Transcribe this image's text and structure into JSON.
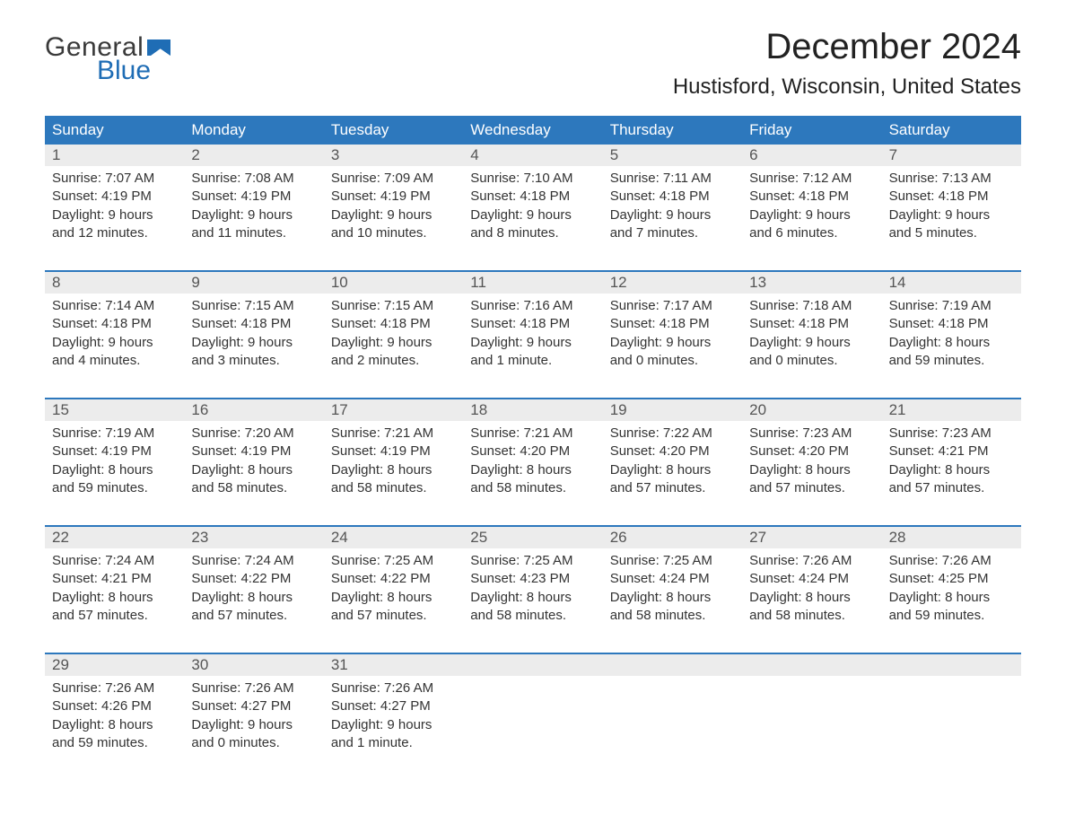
{
  "logo": {
    "general": "General",
    "blue": "Blue",
    "flag_color": "#1f6db5"
  },
  "header": {
    "month_title": "December 2024",
    "location": "Hustisford, Wisconsin, United States"
  },
  "styling": {
    "header_bg": "#2d78bd",
    "header_text": "#ffffff",
    "daynum_bg": "#ececec",
    "week_border": "#2d78bd",
    "body_text": "#333333",
    "title_fontsize": 40,
    "location_fontsize": 24,
    "weekday_fontsize": 17,
    "cell_fontsize": 15
  },
  "weekdays": [
    "Sunday",
    "Monday",
    "Tuesday",
    "Wednesday",
    "Thursday",
    "Friday",
    "Saturday"
  ],
  "weeks": [
    [
      {
        "day": "1",
        "sunrise": "Sunrise: 7:07 AM",
        "sunset": "Sunset: 4:19 PM",
        "dl1": "Daylight: 9 hours",
        "dl2": "and 12 minutes."
      },
      {
        "day": "2",
        "sunrise": "Sunrise: 7:08 AM",
        "sunset": "Sunset: 4:19 PM",
        "dl1": "Daylight: 9 hours",
        "dl2": "and 11 minutes."
      },
      {
        "day": "3",
        "sunrise": "Sunrise: 7:09 AM",
        "sunset": "Sunset: 4:19 PM",
        "dl1": "Daylight: 9 hours",
        "dl2": "and 10 minutes."
      },
      {
        "day": "4",
        "sunrise": "Sunrise: 7:10 AM",
        "sunset": "Sunset: 4:18 PM",
        "dl1": "Daylight: 9 hours",
        "dl2": "and 8 minutes."
      },
      {
        "day": "5",
        "sunrise": "Sunrise: 7:11 AM",
        "sunset": "Sunset: 4:18 PM",
        "dl1": "Daylight: 9 hours",
        "dl2": "and 7 minutes."
      },
      {
        "day": "6",
        "sunrise": "Sunrise: 7:12 AM",
        "sunset": "Sunset: 4:18 PM",
        "dl1": "Daylight: 9 hours",
        "dl2": "and 6 minutes."
      },
      {
        "day": "7",
        "sunrise": "Sunrise: 7:13 AM",
        "sunset": "Sunset: 4:18 PM",
        "dl1": "Daylight: 9 hours",
        "dl2": "and 5 minutes."
      }
    ],
    [
      {
        "day": "8",
        "sunrise": "Sunrise: 7:14 AM",
        "sunset": "Sunset: 4:18 PM",
        "dl1": "Daylight: 9 hours",
        "dl2": "and 4 minutes."
      },
      {
        "day": "9",
        "sunrise": "Sunrise: 7:15 AM",
        "sunset": "Sunset: 4:18 PM",
        "dl1": "Daylight: 9 hours",
        "dl2": "and 3 minutes."
      },
      {
        "day": "10",
        "sunrise": "Sunrise: 7:15 AM",
        "sunset": "Sunset: 4:18 PM",
        "dl1": "Daylight: 9 hours",
        "dl2": "and 2 minutes."
      },
      {
        "day": "11",
        "sunrise": "Sunrise: 7:16 AM",
        "sunset": "Sunset: 4:18 PM",
        "dl1": "Daylight: 9 hours",
        "dl2": "and 1 minute."
      },
      {
        "day": "12",
        "sunrise": "Sunrise: 7:17 AM",
        "sunset": "Sunset: 4:18 PM",
        "dl1": "Daylight: 9 hours",
        "dl2": "and 0 minutes."
      },
      {
        "day": "13",
        "sunrise": "Sunrise: 7:18 AM",
        "sunset": "Sunset: 4:18 PM",
        "dl1": "Daylight: 9 hours",
        "dl2": "and 0 minutes."
      },
      {
        "day": "14",
        "sunrise": "Sunrise: 7:19 AM",
        "sunset": "Sunset: 4:18 PM",
        "dl1": "Daylight: 8 hours",
        "dl2": "and 59 minutes."
      }
    ],
    [
      {
        "day": "15",
        "sunrise": "Sunrise: 7:19 AM",
        "sunset": "Sunset: 4:19 PM",
        "dl1": "Daylight: 8 hours",
        "dl2": "and 59 minutes."
      },
      {
        "day": "16",
        "sunrise": "Sunrise: 7:20 AM",
        "sunset": "Sunset: 4:19 PM",
        "dl1": "Daylight: 8 hours",
        "dl2": "and 58 minutes."
      },
      {
        "day": "17",
        "sunrise": "Sunrise: 7:21 AM",
        "sunset": "Sunset: 4:19 PM",
        "dl1": "Daylight: 8 hours",
        "dl2": "and 58 minutes."
      },
      {
        "day": "18",
        "sunrise": "Sunrise: 7:21 AM",
        "sunset": "Sunset: 4:20 PM",
        "dl1": "Daylight: 8 hours",
        "dl2": "and 58 minutes."
      },
      {
        "day": "19",
        "sunrise": "Sunrise: 7:22 AM",
        "sunset": "Sunset: 4:20 PM",
        "dl1": "Daylight: 8 hours",
        "dl2": "and 57 minutes."
      },
      {
        "day": "20",
        "sunrise": "Sunrise: 7:23 AM",
        "sunset": "Sunset: 4:20 PM",
        "dl1": "Daylight: 8 hours",
        "dl2": "and 57 minutes."
      },
      {
        "day": "21",
        "sunrise": "Sunrise: 7:23 AM",
        "sunset": "Sunset: 4:21 PM",
        "dl1": "Daylight: 8 hours",
        "dl2": "and 57 minutes."
      }
    ],
    [
      {
        "day": "22",
        "sunrise": "Sunrise: 7:24 AM",
        "sunset": "Sunset: 4:21 PM",
        "dl1": "Daylight: 8 hours",
        "dl2": "and 57 minutes."
      },
      {
        "day": "23",
        "sunrise": "Sunrise: 7:24 AM",
        "sunset": "Sunset: 4:22 PM",
        "dl1": "Daylight: 8 hours",
        "dl2": "and 57 minutes."
      },
      {
        "day": "24",
        "sunrise": "Sunrise: 7:25 AM",
        "sunset": "Sunset: 4:22 PM",
        "dl1": "Daylight: 8 hours",
        "dl2": "and 57 minutes."
      },
      {
        "day": "25",
        "sunrise": "Sunrise: 7:25 AM",
        "sunset": "Sunset: 4:23 PM",
        "dl1": "Daylight: 8 hours",
        "dl2": "and 58 minutes."
      },
      {
        "day": "26",
        "sunrise": "Sunrise: 7:25 AM",
        "sunset": "Sunset: 4:24 PM",
        "dl1": "Daylight: 8 hours",
        "dl2": "and 58 minutes."
      },
      {
        "day": "27",
        "sunrise": "Sunrise: 7:26 AM",
        "sunset": "Sunset: 4:24 PM",
        "dl1": "Daylight: 8 hours",
        "dl2": "and 58 minutes."
      },
      {
        "day": "28",
        "sunrise": "Sunrise: 7:26 AM",
        "sunset": "Sunset: 4:25 PM",
        "dl1": "Daylight: 8 hours",
        "dl2": "and 59 minutes."
      }
    ],
    [
      {
        "day": "29",
        "sunrise": "Sunrise: 7:26 AM",
        "sunset": "Sunset: 4:26 PM",
        "dl1": "Daylight: 8 hours",
        "dl2": "and 59 minutes."
      },
      {
        "day": "30",
        "sunrise": "Sunrise: 7:26 AM",
        "sunset": "Sunset: 4:27 PM",
        "dl1": "Daylight: 9 hours",
        "dl2": "and 0 minutes."
      },
      {
        "day": "31",
        "sunrise": "Sunrise: 7:26 AM",
        "sunset": "Sunset: 4:27 PM",
        "dl1": "Daylight: 9 hours",
        "dl2": "and 1 minute."
      },
      {
        "day": "",
        "sunrise": "",
        "sunset": "",
        "dl1": "",
        "dl2": ""
      },
      {
        "day": "",
        "sunrise": "",
        "sunset": "",
        "dl1": "",
        "dl2": ""
      },
      {
        "day": "",
        "sunrise": "",
        "sunset": "",
        "dl1": "",
        "dl2": ""
      },
      {
        "day": "",
        "sunrise": "",
        "sunset": "",
        "dl1": "",
        "dl2": ""
      }
    ]
  ]
}
